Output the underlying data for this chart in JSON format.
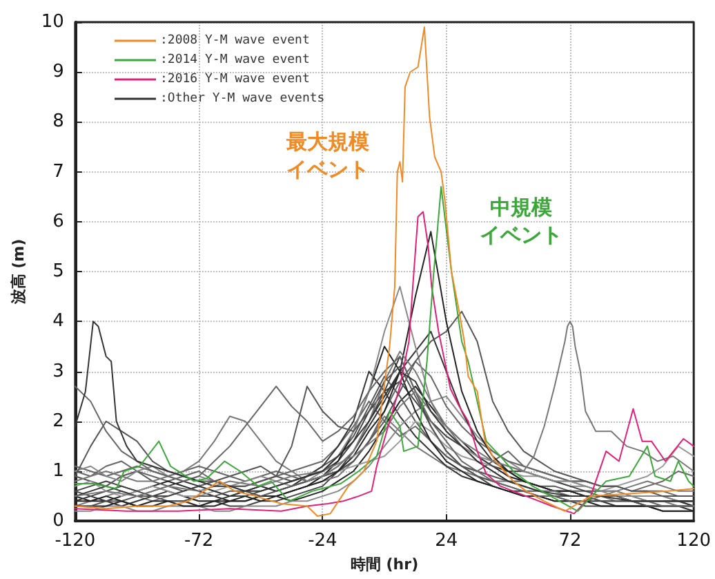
{
  "chart_data": {
    "type": "line",
    "xlabel": "時間 (hr)",
    "ylabel": "波高 (m)",
    "xlim": [
      -120,
      120
    ],
    "xticks": [
      -120,
      -72,
      -24,
      24,
      72,
      120
    ],
    "ylim": [
      0,
      10
    ],
    "yticks": [
      0,
      1,
      2,
      3,
      4,
      5,
      6,
      7,
      8,
      9,
      10
    ],
    "grid": true,
    "legend": "top left",
    "marker": "none",
    "line_style": "solid",
    "annotations": [
      "最大規模イベント",
      "中規模イベント"
    ],
    "x": [
      -120,
      -114,
      -108,
      -102,
      -96,
      -90,
      -84,
      -78,
      -72,
      -66,
      -60,
      -54,
      -48,
      -42,
      -36,
      -30,
      -24,
      -18,
      -12,
      -6,
      0,
      6,
      12,
      18,
      24,
      30,
      36,
      42,
      48,
      54,
      60,
      66,
      72,
      78,
      84,
      90,
      96,
      102,
      108,
      114,
      120
    ],
    "series": [
      {
        "name": ":2008 Y-M wave event",
        "color": "#f08a24",
        "x": [
          -120,
          -108,
          -96,
          -84,
          -76,
          -70,
          -64,
          -58,
          -50,
          -40,
          -30,
          -26,
          -21,
          -14,
          -8,
          -3,
          2,
          4,
          5,
          6,
          7,
          8,
          10,
          13,
          15.5,
          17.5,
          19.5,
          22,
          23.5,
          26,
          29,
          31,
          32.5,
          36,
          39,
          43,
          50,
          55,
          62,
          70,
          80,
          95,
          110,
          120
        ],
        "values": [
          0.3,
          0.25,
          0.3,
          0.3,
          0.4,
          0.6,
          0.8,
          0.6,
          0.5,
          0.35,
          0.3,
          0.1,
          0.15,
          0.7,
          1.0,
          1.6,
          3.5,
          4.7,
          7.0,
          7.2,
          6.8,
          8.7,
          9.0,
          9.1,
          9.9,
          8.1,
          7.3,
          7.0,
          6.4,
          5.0,
          4.2,
          3.6,
          2.9,
          2.6,
          1.6,
          1.2,
          0.8,
          0.6,
          0.4,
          0.2,
          0.5,
          0.55,
          0.6,
          0.65
        ]
      },
      {
        "name": ":2014 Y-M wave event",
        "color": "#3ca83a",
        "x": [
          -120,
          -113,
          -104,
          -101,
          -95,
          -87.5,
          -83,
          -74,
          -69,
          -62,
          -56,
          -49,
          -44,
          -37,
          -28,
          -17,
          -10,
          -3,
          2,
          6,
          7.5,
          13,
          16.5,
          19,
          22,
          26,
          30,
          32.5,
          36,
          39.5,
          45,
          50,
          57.5,
          68,
          75,
          86,
          95,
          102,
          105,
          111,
          114,
          118,
          120
        ],
        "values": [
          0.75,
          0.75,
          0.65,
          1.0,
          1.1,
          1.6,
          1.1,
          0.8,
          0.85,
          1.2,
          1.0,
          0.7,
          0.8,
          0.4,
          0.6,
          0.75,
          1.0,
          1.3,
          2.2,
          1.9,
          1.4,
          1.5,
          3.2,
          4.9,
          6.7,
          5.0,
          3.6,
          3.2,
          2.4,
          1.6,
          1.3,
          1.0,
          0.7,
          0.4,
          0.2,
          0.8,
          0.9,
          1.5,
          0.9,
          0.8,
          1.2,
          0.8,
          0.7
        ]
      },
      {
        "name": ":2016 Y-M wave event",
        "color": "#e0207a",
        "x": [
          -120,
          -100,
          -80,
          -60,
          -40,
          -30,
          -22,
          -16,
          -10,
          -5,
          -3,
          2,
          6,
          9.5,
          11,
          13,
          15,
          17,
          18.3,
          21,
          25.6,
          29,
          32.5,
          36,
          39.5,
          45,
          55,
          65,
          73.6,
          80,
          86,
          91,
          96.5,
          100,
          103.6,
          109,
          116,
          120
        ],
        "values": [
          0.25,
          0.2,
          0.2,
          0.25,
          0.2,
          0.3,
          0.35,
          0.4,
          0.5,
          0.6,
          1.1,
          2.0,
          2.7,
          3.6,
          4.7,
          6.1,
          6.2,
          5.5,
          4.7,
          3.8,
          2.65,
          2.3,
          2.0,
          1.4,
          0.95,
          0.7,
          0.5,
          0.3,
          0.15,
          0.5,
          1.4,
          1.2,
          2.25,
          1.6,
          1.6,
          1.2,
          1.65,
          1.5
        ]
      },
      {
        "name": ":Other Y-M wave events",
        "color": "#333333",
        "x": [
          -120,
          -116,
          -113,
          -111,
          -108,
          -106,
          -104,
          -100,
          -96,
          -90,
          -84,
          -78,
          -72,
          -66,
          -60,
          -54,
          -48,
          -42,
          -36,
          -30,
          -24,
          -18,
          -12,
          -6,
          0,
          6,
          12,
          18,
          24,
          30,
          36,
          42,
          48,
          60,
          72,
          84,
          96,
          108,
          120
        ],
        "values": [
          1.9,
          2.6,
          4.0,
          3.9,
          3.3,
          3.2,
          2.0,
          1.5,
          1.2,
          1.1,
          1.0,
          0.9,
          0.8,
          0.7,
          0.7,
          0.6,
          0.6,
          0.7,
          0.8,
          0.9,
          1.0,
          1.3,
          1.6,
          2.0,
          2.5,
          3.0,
          2.8,
          2.2,
          1.8,
          1.5,
          1.2,
          1.0,
          0.8,
          0.6,
          0.5,
          0.5,
          0.4,
          0.4,
          0.4
        ]
      },
      {
        "color": "#777777",
        "x": [
          -120,
          -108,
          -96,
          -84,
          -72,
          -60,
          -48,
          -36,
          -24,
          -12,
          0,
          6,
          12,
          18,
          24,
          30,
          36,
          42,
          48,
          54,
          58,
          62,
          66,
          70,
          71,
          72,
          73,
          74,
          76,
          78,
          82,
          88,
          94,
          100,
          106,
          112,
          120
        ],
        "values": [
          0.5,
          0.6,
          0.5,
          0.7,
          0.6,
          0.8,
          0.7,
          0.9,
          1.0,
          1.3,
          1.8,
          2.3,
          2.6,
          2.2,
          1.9,
          1.6,
          1.4,
          1.2,
          1.1,
          1.0,
          1.3,
          1.9,
          2.7,
          3.6,
          3.9,
          4.0,
          3.9,
          3.5,
          3.0,
          2.2,
          1.8,
          1.8,
          1.5,
          1.4,
          1.2,
          1.3,
          1.0
        ]
      },
      {
        "color": "#666666",
        "values": [
          2.7,
          2.4,
          1.8,
          1.4,
          1.2,
          1.0,
          0.9,
          0.8,
          0.9,
          1.2,
          1.5,
          1.9,
          2.3,
          2.7,
          2.3,
          2.0,
          1.6,
          1.8,
          2.1,
          2.6,
          3.0,
          3.3,
          2.6,
          2.0,
          1.6,
          1.2,
          1.0,
          0.8,
          0.7,
          0.6,
          0.5,
          0.5,
          0.4,
          0.4,
          0.5,
          0.5,
          0.4,
          0.4,
          0.3,
          0.3,
          0.3
        ]
      },
      {
        "color": "#555555",
        "values": [
          0.9,
          1.5,
          2.0,
          1.8,
          1.6,
          1.2,
          1.0,
          0.9,
          0.8,
          0.8,
          0.7,
          0.7,
          0.8,
          0.9,
          1.5,
          2.7,
          2.2,
          1.9,
          1.8,
          2.2,
          2.8,
          3.1,
          2.5,
          1.9,
          1.4,
          1.1,
          0.9,
          0.8,
          0.7,
          0.6,
          0.6,
          0.5,
          0.5,
          0.5,
          0.4,
          0.4,
          0.4,
          0.3,
          0.3,
          0.3,
          0.3
        ]
      },
      {
        "color": "#777777",
        "values": [
          0.8,
          0.9,
          1.0,
          0.9,
          0.8,
          0.8,
          0.9,
          1.0,
          1.2,
          1.6,
          2.1,
          2.0,
          1.6,
          1.2,
          1.0,
          0.8,
          0.9,
          1.1,
          1.4,
          2.0,
          2.8,
          3.4,
          3.0,
          2.4,
          1.9,
          1.5,
          1.2,
          1.0,
          0.8,
          0.7,
          0.6,
          0.6,
          0.5,
          0.5,
          0.5,
          0.4,
          0.4,
          0.4,
          0.4,
          0.3,
          0.3
        ]
      },
      {
        "color": "#222222",
        "values": [
          0.4,
          0.4,
          0.5,
          0.4,
          0.3,
          0.4,
          0.4,
          0.3,
          0.3,
          0.4,
          0.4,
          0.5,
          0.4,
          0.5,
          0.6,
          0.7,
          0.8,
          1.0,
          1.3,
          1.8,
          2.2,
          3.0,
          4.5,
          5.8,
          4.0,
          2.6,
          1.8,
          1.3,
          1.0,
          0.8,
          0.7,
          0.6,
          0.6,
          0.5,
          0.5,
          0.5,
          0.4,
          0.4,
          0.4,
          0.4,
          0.4
        ]
      },
      {
        "color": "#555555",
        "values": [
          0.3,
          0.3,
          0.4,
          0.4,
          0.5,
          0.5,
          0.4,
          0.4,
          0.5,
          0.5,
          0.6,
          0.6,
          0.5,
          0.6,
          0.7,
          0.8,
          0.9,
          1.0,
          1.2,
          1.6,
          2.0,
          2.6,
          3.2,
          3.6,
          3.8,
          4.2,
          3.6,
          2.4,
          1.8,
          1.4,
          1.2,
          1.0,
          0.9,
          0.8,
          0.7,
          0.7,
          0.6,
          0.6,
          0.5,
          0.5,
          0.5
        ]
      },
      {
        "color": "#888888",
        "values": [
          1.0,
          1.1,
          0.9,
          0.8,
          1.0,
          1.1,
          0.9,
          0.8,
          0.9,
          0.8,
          0.7,
          0.8,
          0.9,
          0.8,
          0.7,
          0.8,
          1.0,
          1.3,
          1.8,
          2.6,
          3.8,
          4.7,
          3.5,
          2.4,
          1.8,
          1.5,
          1.3,
          1.2,
          1.1,
          1.0,
          0.9,
          0.8,
          0.8,
          0.7,
          0.6,
          0.6,
          0.5,
          0.5,
          0.5,
          0.4,
          0.4
        ]
      },
      {
        "color": "#333333",
        "values": [
          0.5,
          0.6,
          0.7,
          0.6,
          0.5,
          0.6,
          0.7,
          0.8,
          0.7,
          0.6,
          0.5,
          0.6,
          0.7,
          0.6,
          0.7,
          0.8,
          0.9,
          1.1,
          1.4,
          1.9,
          2.4,
          3.0,
          3.4,
          3.8,
          3.0,
          2.2,
          1.6,
          1.2,
          1.0,
          0.8,
          0.7,
          0.6,
          0.6,
          0.5,
          0.5,
          0.5,
          0.4,
          0.4,
          0.4,
          0.4,
          0.3
        ]
      },
      {
        "color": "#222222",
        "values": [
          0.3,
          0.3,
          0.3,
          0.4,
          0.3,
          0.3,
          0.4,
          0.4,
          0.3,
          0.3,
          0.4,
          0.4,
          0.5,
          0.5,
          0.6,
          0.7,
          0.9,
          1.2,
          1.8,
          2.6,
          3.5,
          3.0,
          2.2,
          1.6,
          1.2,
          1.0,
          0.8,
          0.7,
          0.6,
          0.5,
          0.5,
          0.4,
          0.4,
          0.4,
          0.3,
          0.3,
          0.3,
          0.3,
          0.2,
          0.2,
          0.2
        ]
      },
      {
        "color": "#666666",
        "values": [
          1.1,
          1.0,
          0.9,
          1.0,
          1.1,
          1.0,
          0.9,
          1.0,
          1.1,
          1.0,
          0.9,
          0.8,
          0.9,
          1.0,
          0.9,
          0.8,
          0.9,
          1.0,
          1.2,
          1.6,
          2.2,
          2.8,
          3.2,
          2.9,
          2.3,
          1.9,
          1.6,
          1.4,
          1.2,
          1.1,
          1.0,
          0.9,
          0.8,
          0.8,
          0.7,
          0.7,
          0.6,
          0.6,
          0.6,
          0.5,
          0.5
        ]
      },
      {
        "color": "#444444",
        "values": [
          0.6,
          0.5,
          0.6,
          0.7,
          0.6,
          0.5,
          0.5,
          0.6,
          0.7,
          0.6,
          0.5,
          0.5,
          0.6,
          0.7,
          0.8,
          0.9,
          1.0,
          1.2,
          1.6,
          2.2,
          2.6,
          2.8,
          2.4,
          2.0,
          1.7,
          1.5,
          1.3,
          1.1,
          1.0,
          1.0,
          0.9,
          0.8,
          0.7,
          0.6,
          0.6,
          0.6,
          0.5,
          0.5,
          0.5,
          0.4,
          0.4
        ]
      },
      {
        "color": "#888888",
        "values": [
          0.2,
          0.2,
          0.3,
          0.3,
          0.2,
          0.2,
          0.3,
          0.3,
          0.3,
          0.2,
          0.2,
          0.3,
          0.3,
          0.3,
          0.4,
          0.4,
          0.5,
          0.6,
          0.8,
          1.1,
          1.5,
          1.9,
          2.2,
          2.4,
          2.5,
          2.1,
          1.7,
          1.4,
          1.2,
          1.0,
          0.9,
          0.8,
          0.7,
          0.7,
          0.6,
          0.5,
          0.5,
          0.4,
          0.4,
          0.4,
          0.3
        ]
      },
      {
        "color": "#999999",
        "values": [
          0.7,
          0.8,
          0.6,
          0.5,
          0.6,
          0.7,
          0.6,
          0.5,
          0.5,
          0.6,
          0.7,
          0.6,
          0.5,
          0.6,
          0.7,
          0.8,
          0.9,
          1.0,
          1.1,
          1.2,
          1.3,
          1.6,
          2.0,
          1.8,
          1.5,
          1.3,
          1.2,
          1.1,
          1.0,
          0.9,
          0.9,
          0.8,
          0.8,
          0.7,
          0.6,
          0.7,
          0.8,
          0.9,
          1.1,
          1.5,
          1.3
        ]
      },
      {
        "color": "#333333",
        "values": [
          0.4,
          0.5,
          0.4,
          0.3,
          0.4,
          0.5,
          0.6,
          0.5,
          0.4,
          0.4,
          0.5,
          0.6,
          0.7,
          0.6,
          0.7,
          0.9,
          1.1,
          1.5,
          2.0,
          3.0,
          2.6,
          2.1,
          1.7,
          1.4,
          1.1,
          0.9,
          0.8,
          0.7,
          0.6,
          0.6,
          0.5,
          0.5,
          0.4,
          0.4,
          0.4,
          0.3,
          0.3,
          0.3,
          0.3,
          0.3,
          0.2
        ]
      },
      {
        "color": "#555555",
        "values": [
          0.9,
          0.8,
          0.7,
          0.9,
          1.0,
          0.8,
          0.7,
          0.6,
          0.7,
          0.8,
          0.9,
          1.0,
          1.1,
          0.9,
          0.8,
          0.9,
          1.1,
          1.3,
          1.7,
          2.3,
          2.9,
          2.5,
          2.0,
          1.6,
          1.3,
          1.1,
          1.0,
          0.9,
          0.8,
          0.8,
          0.7,
          0.7,
          0.6,
          0.6,
          0.5,
          0.5,
          0.5,
          0.4,
          0.4,
          0.4,
          0.4
        ]
      },
      {
        "color": "#222222",
        "values": [
          0.5,
          0.4,
          0.4,
          0.5,
          0.6,
          0.7,
          0.8,
          0.7,
          0.6,
          0.5,
          0.4,
          0.4,
          0.5,
          0.5,
          0.4,
          0.5,
          0.6,
          0.8,
          1.0,
          1.4,
          1.9,
          2.4,
          2.7,
          2.3,
          1.9,
          1.6,
          1.3,
          1.1,
          0.9,
          0.8,
          0.7,
          0.6,
          0.5,
          0.5,
          0.4,
          0.4,
          0.4,
          0.3,
          0.3,
          0.3,
          0.3
        ]
      },
      {
        "color": "#777777",
        "values": [
          0.3,
          0.4,
          0.5,
          0.6,
          0.5,
          0.4,
          0.5,
          0.6,
          0.7,
          0.8,
          0.7,
          0.6,
          0.5,
          0.5,
          0.6,
          0.7,
          0.8,
          0.9,
          1.2,
          1.6,
          2.1,
          1.8,
          1.5,
          1.3,
          1.1,
          1.0,
          0.9,
          0.8,
          0.8,
          0.7,
          0.6,
          0.6,
          0.6,
          0.5,
          0.5,
          0.6,
          0.7,
          0.8,
          0.7,
          0.6,
          0.6
        ]
      },
      {
        "color": "#666666",
        "values": [
          1.0,
          0.9,
          1.1,
          1.2,
          1.0,
          0.9,
          0.8,
          0.9,
          1.0,
          0.8,
          0.7,
          0.7,
          0.8,
          0.9,
          1.0,
          1.1,
          1.2,
          1.5,
          1.9,
          2.4,
          2.0,
          1.7,
          1.9,
          1.6,
          1.3,
          1.1,
          1.0,
          1.2,
          1.4,
          1.1,
          1.0,
          0.9,
          0.8,
          0.8,
          0.7,
          0.7,
          0.6,
          0.7,
          0.8,
          1.0,
          0.9
        ]
      },
      {
        "color": "#444444",
        "values": [
          0.6,
          0.7,
          0.8,
          0.7,
          0.6,
          0.7,
          0.6,
          0.5,
          0.4,
          0.4,
          0.3,
          0.3,
          0.4,
          0.4,
          0.5,
          0.6,
          0.7,
          1.0,
          1.4,
          2.0,
          2.6,
          3.3,
          2.6,
          1.9,
          1.4,
          1.1,
          0.9,
          0.7,
          0.6,
          0.5,
          0.5,
          0.4,
          0.4,
          0.3,
          0.3,
          0.3,
          0.3,
          0.3,
          0.2,
          0.2,
          0.2
        ]
      }
    ]
  }
}
